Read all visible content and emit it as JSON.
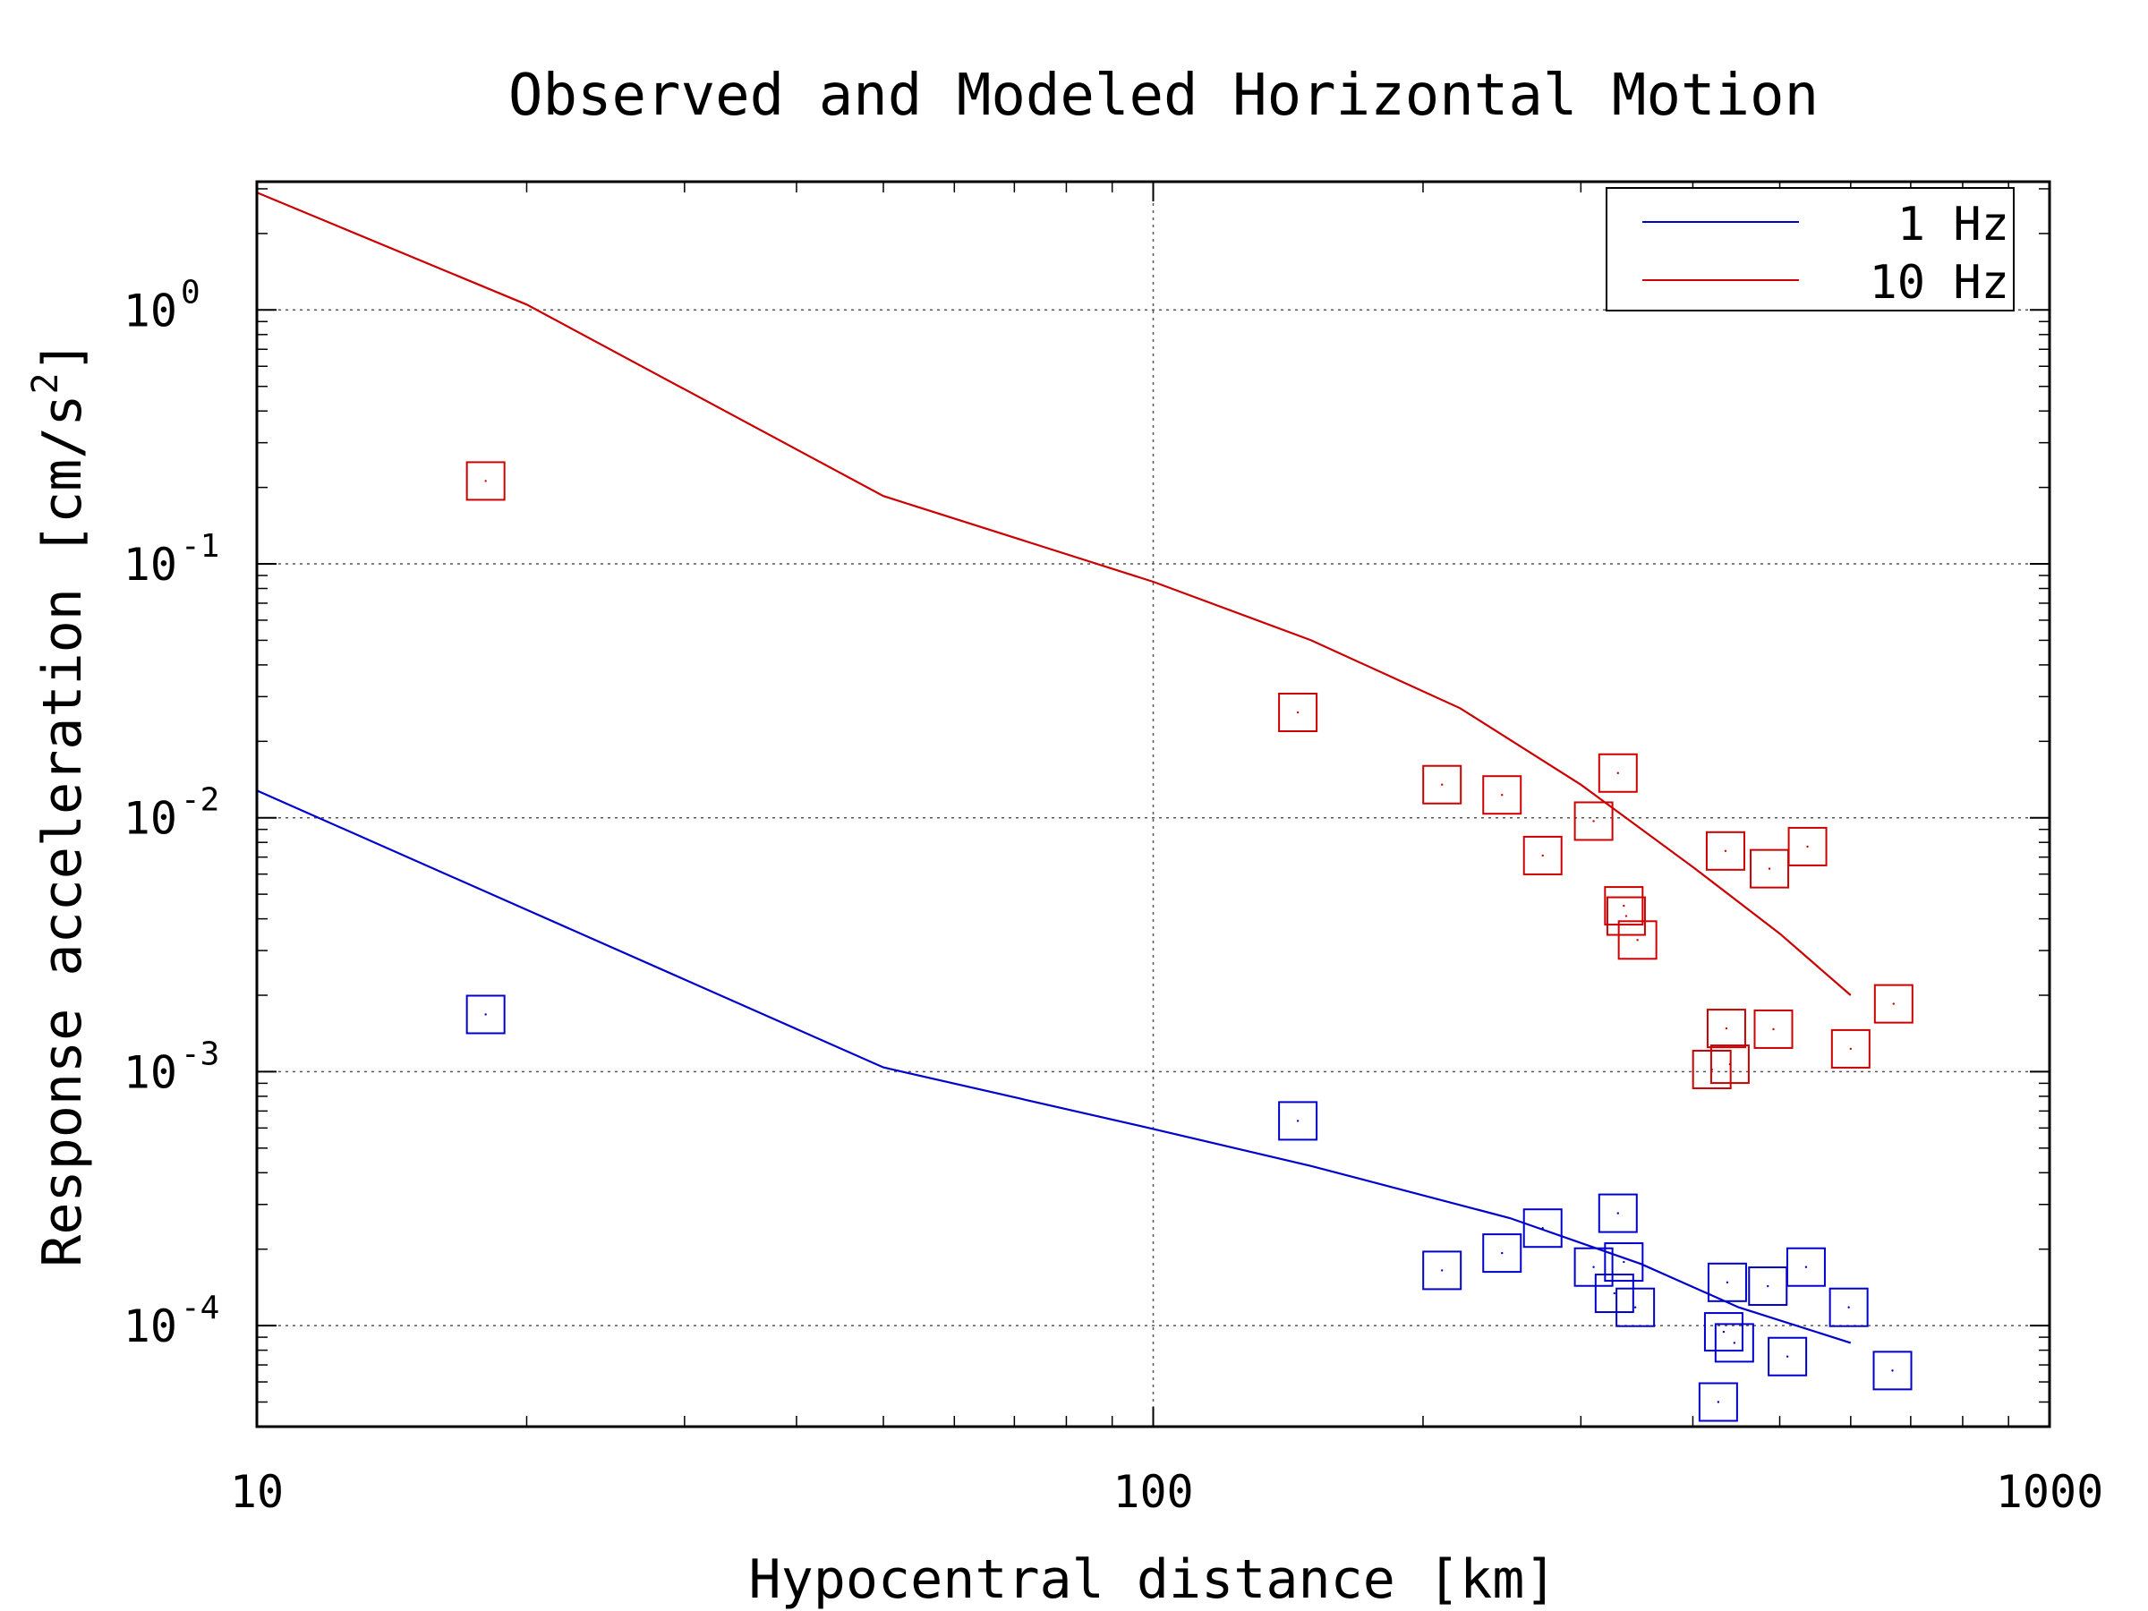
{
  "chart_data": {
    "type": "scatter",
    "title": "Observed and Modeled Horizontal Motion",
    "xlabel": "Hypocentral distance [km]",
    "ylabel": "Response acceleration [cm/s",
    "ylabel_sup": "2",
    "ylabel_close": "]",
    "xscale": "log",
    "yscale": "log",
    "xlim": [
      10,
      1000
    ],
    "ylim": [
      4e-05,
      3.2
    ],
    "x_ticks": [
      {
        "value": 10,
        "label": "10"
      },
      {
        "value": 100,
        "label": "100"
      },
      {
        "value": 1000,
        "label": "1000"
      }
    ],
    "y_ticks": [
      {
        "value": 1,
        "base": "10",
        "exp": "0"
      },
      {
        "value": 0.1,
        "base": "10",
        "exp": "-1"
      },
      {
        "value": 0.01,
        "base": "10",
        "exp": "-2"
      },
      {
        "value": 0.001,
        "base": "10",
        "exp": "-3"
      },
      {
        "value": 0.0001,
        "base": "10",
        "exp": "-4"
      }
    ],
    "grid": true,
    "legend_position": "top-right",
    "lines": [
      {
        "name": "1 Hz",
        "color": "#0000cc",
        "x": [
          10,
          50,
          100,
          150,
          250,
          350,
          450,
          600
        ],
        "y": [
          0.0128,
          0.00104,
          0.000595,
          0.000425,
          0.000265,
          0.000175,
          0.000118,
          8.55e-05
        ]
      },
      {
        "name": "10 Hz",
        "color": "#cc0000",
        "x": [
          10,
          20,
          50,
          100,
          150,
          220,
          300,
          400,
          500,
          600
        ],
        "y": [
          2.9,
          1.05,
          0.185,
          0.085,
          0.05,
          0.027,
          0.0135,
          0.0064,
          0.0035,
          0.002
        ]
      }
    ],
    "scatter_series": [
      {
        "marker": "square",
        "color": "#cc0000",
        "points": [
          [
            18,
            0.212
          ],
          [
            145,
            0.026
          ],
          [
            210,
            0.0135
          ],
          [
            245,
            0.0123
          ],
          [
            272,
            0.0071
          ],
          [
            310,
            0.0097
          ],
          [
            330,
            0.015
          ],
          [
            335,
            0.0045
          ],
          [
            337,
            0.0041
          ],
          [
            347,
            0.0033
          ],
          [
            435,
            0.0074
          ],
          [
            487,
            0.0063
          ],
          [
            537,
            0.0077
          ],
          [
            436,
            0.00148
          ],
          [
            440,
            0.00107
          ],
          [
            492,
            0.00147
          ],
          [
            600,
            0.00123
          ],
          [
            670,
            0.00185
          ],
          [
            420,
            0.00102
          ]
        ]
      },
      {
        "marker": "square",
        "color": "#0000cc",
        "points": [
          [
            18,
            0.00168
          ],
          [
            145,
            0.00064
          ],
          [
            210,
            0.000165
          ],
          [
            245,
            0.000193
          ],
          [
            272,
            0.000242
          ],
          [
            310,
            0.00017
          ],
          [
            330,
            0.000277
          ],
          [
            327,
            0.000134
          ],
          [
            335,
            0.000178
          ],
          [
            345,
            0.000118
          ],
          [
            437,
            0.000148
          ],
          [
            433,
            9.45e-05
          ],
          [
            445,
            8.55e-05
          ],
          [
            485,
            0.000143
          ],
          [
            510,
            7.55e-05
          ],
          [
            535,
            0.00017
          ],
          [
            597,
            0.000118
          ],
          [
            668,
            6.65e-05
          ],
          [
            427,
            5e-05
          ]
        ]
      }
    ]
  }
}
